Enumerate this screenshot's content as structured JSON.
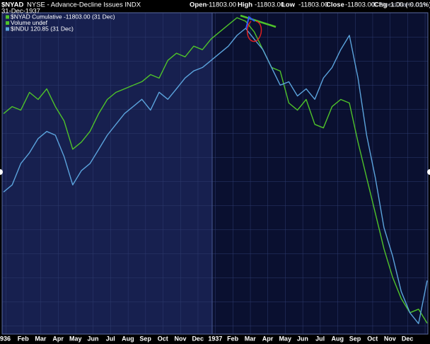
{
  "chart_data": {
    "type": "line",
    "symbol": "$NYAD",
    "title": "NYSE - Advance-Decline Issues INDX",
    "date": "31-Dec-1937",
    "quote": [
      {
        "label": "Open",
        "value": "-11803.00"
      },
      {
        "label": "High",
        "value": "-11803.00"
      },
      {
        "label": "Low",
        "value": "-11803.00"
      },
      {
        "label": "Close",
        "value": "-11803.00"
      },
      {
        "label": "Chg",
        "value": "-1.00 (-0.01%)"
      }
    ],
    "legend": [
      "$NYAD Cumulative -11803.00 (31 Dec)",
      "Volume undef",
      "$INDU 120.85 (31 Dec)"
    ],
    "watermark": "© StockCharts.com",
    "x_labels": [
      "936",
      "Feb",
      "Mar",
      "Apr",
      "May",
      "Jun",
      "Jul",
      "Aug",
      "Sep",
      "Oct",
      "Nov",
      "Dec",
      "1937",
      "Feb",
      "Mar",
      "Apr",
      "May",
      "Jun",
      "Jul",
      "Aug",
      "Sep",
      "Oct",
      "Nov",
      "Dec"
    ],
    "ylim": [
      105,
      200
    ],
    "y2lim": [
      -12500,
      8000
    ],
    "series": [
      {
        "name": "$NYAD Cumulative",
        "color": "#4fc32a",
        "axis": "y2",
        "values": [
          1560,
          2014,
          1787,
          2921,
          2467,
          3148,
          2014,
          1107,
          -707,
          -254,
          427,
          1560,
          2467,
          2921,
          3148,
          3374,
          3601,
          4055,
          3828,
          4962,
          5415,
          5188,
          5869,
          5642,
          6322,
          6776,
          7229,
          7683,
          7456,
          6776,
          5642,
          4508,
          4281,
          2241,
          1787,
          2467,
          880,
          653,
          2014,
          2467,
          2241,
          -254,
          -2521,
          -4789,
          -7056,
          -8870,
          -10231,
          -11138,
          -10911,
          -11803
        ]
      },
      {
        "name": "$INDU",
        "color": "#5ba3dc",
        "values": [
          147.0,
          149.1,
          155.4,
          158.6,
          162.8,
          164.9,
          163.8,
          157.5,
          149.1,
          153.3,
          155.4,
          159.6,
          163.8,
          167.0,
          170.2,
          172.3,
          174.4,
          171.2,
          176.5,
          174.4,
          177.5,
          180.7,
          182.8,
          183.8,
          185.9,
          188.0,
          190.1,
          193.3,
          195.4,
          192.2,
          189.1,
          183.8,
          178.6,
          179.6,
          175.4,
          177.5,
          174.4,
          180.7,
          183.8,
          189.1,
          193.3,
          180.7,
          163.8,
          151.2,
          136.5,
          128.1,
          117.6,
          111.3,
          108.1,
          120.85
        ]
      }
    ]
  }
}
